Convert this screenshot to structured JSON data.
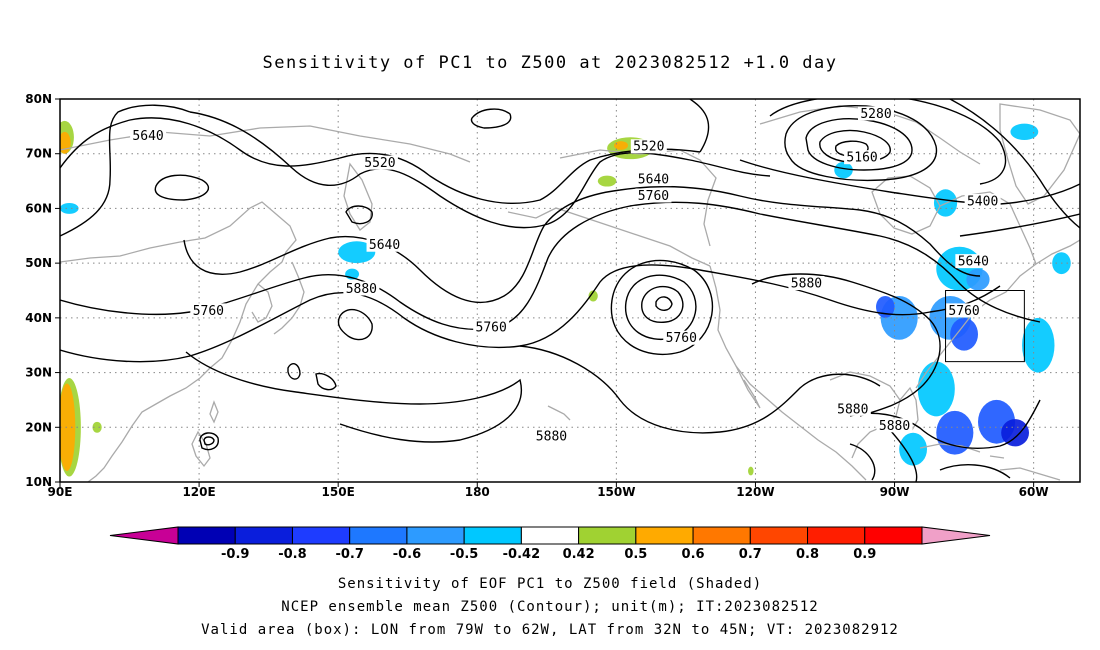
{
  "title": "Sensitivity of PC1 to Z500 at 2023082512 +1.0 day",
  "axes": {
    "lat_labels": [
      "80N",
      "70N",
      "60N",
      "50N",
      "40N",
      "30N",
      "20N",
      "10N"
    ],
    "lon_labels": [
      "90E",
      "120E",
      "150E",
      "180",
      "150W",
      "120W",
      "90W",
      "60W"
    ],
    "lat_range": [
      10,
      80
    ],
    "lon_range": [
      90,
      310
    ],
    "grid": "dotted"
  },
  "contour_labels": [
    {
      "text": "5640",
      "lon": 109,
      "lat": 73
    },
    {
      "text": "5520",
      "lon": 159,
      "lat": 68
    },
    {
      "text": "5640",
      "lon": 160,
      "lat": 53
    },
    {
      "text": "5880",
      "lon": 155,
      "lat": 45
    },
    {
      "text": "5760",
      "lon": 122,
      "lat": 41
    },
    {
      "text": "5760",
      "lon": 183,
      "lat": 38
    },
    {
      "text": "5880",
      "lon": 196,
      "lat": 18
    },
    {
      "text": "5520",
      "lon": 217,
      "lat": 71
    },
    {
      "text": "5640",
      "lon": 218,
      "lat": 65
    },
    {
      "text": "5760",
      "lon": 218,
      "lat": 62
    },
    {
      "text": "5760",
      "lon": 224,
      "lat": 36
    },
    {
      "text": "5880",
      "lon": 251,
      "lat": 46
    },
    {
      "text": "5280",
      "lon": 266,
      "lat": 77
    },
    {
      "text": "5160",
      "lon": 263,
      "lat": 69
    },
    {
      "text": "5400",
      "lon": 289,
      "lat": 61
    },
    {
      "text": "5640",
      "lon": 287,
      "lat": 50
    },
    {
      "text": "5760",
      "lon": 285,
      "lat": 41
    },
    {
      "text": "5880",
      "lon": 261,
      "lat": 23
    },
    {
      "text": "5880",
      "lon": 270,
      "lat": 20
    }
  ],
  "valid_box": {
    "lon_min": 281,
    "lon_max": 298,
    "lat_min": 32,
    "lat_max": 45
  },
  "shaded_regions": [
    {
      "level": -0.6,
      "color": "#1e5aff",
      "lon": 292,
      "lat": 21,
      "rx": 4,
      "ry": 4
    },
    {
      "level": -0.8,
      "color": "#0a1edc",
      "lon": 296,
      "lat": 19,
      "rx": 3,
      "ry": 2.5
    },
    {
      "level": -0.5,
      "color": "#2d9bff",
      "lon": 282,
      "lat": 40,
      "rx": 4.5,
      "ry": 4
    },
    {
      "level": -0.6,
      "color": "#1e5aff",
      "lon": 285,
      "lat": 37,
      "rx": 3,
      "ry": 3
    },
    {
      "level": -0.42,
      "color": "#00c8ff",
      "lon": 284,
      "lat": 49,
      "rx": 5,
      "ry": 4
    },
    {
      "level": -0.5,
      "color": "#2d9bff",
      "lon": 288,
      "lat": 47,
      "rx": 2.5,
      "ry": 2
    },
    {
      "level": -0.5,
      "color": "#2d9bff",
      "lon": 271,
      "lat": 40,
      "rx": 4,
      "ry": 4
    },
    {
      "level": -0.6,
      "color": "#1e5aff",
      "lon": 268,
      "lat": 42,
      "rx": 2,
      "ry": 2
    },
    {
      "level": -0.42,
      "color": "#00c8ff",
      "lon": 279,
      "lat": 27,
      "rx": 4,
      "ry": 5
    },
    {
      "level": -0.6,
      "color": "#1e5aff",
      "lon": 283,
      "lat": 19,
      "rx": 4,
      "ry": 4
    },
    {
      "level": -0.42,
      "color": "#00c8ff",
      "lon": 274,
      "lat": 16,
      "rx": 3,
      "ry": 3
    },
    {
      "level": -0.42,
      "color": "#00c8ff",
      "lon": 301,
      "lat": 35,
      "rx": 3.5,
      "ry": 5
    },
    {
      "level": -0.42,
      "color": "#00c8ff",
      "lon": 281,
      "lat": 61,
      "rx": 2.5,
      "ry": 2.5
    },
    {
      "level": -0.42,
      "color": "#00c8ff",
      "lon": 306,
      "lat": 50,
      "rx": 2,
      "ry": 2
    },
    {
      "level": -0.42,
      "color": "#00c8ff",
      "lon": 298,
      "lat": 74,
      "rx": 3,
      "ry": 1.5
    },
    {
      "level": -0.42,
      "color": "#00c8ff",
      "lon": 259,
      "lat": 67,
      "rx": 2,
      "ry": 1.5
    },
    {
      "level": -0.42,
      "color": "#00c8ff",
      "lon": 154,
      "lat": 52,
      "rx": 4,
      "ry": 2
    },
    {
      "level": -0.42,
      "color": "#00c8ff",
      "lon": 153,
      "lat": 48,
      "rx": 1.5,
      "ry": 1
    },
    {
      "level": -0.42,
      "color": "#00c8ff",
      "lon": 92,
      "lat": 60,
      "rx": 2,
      "ry": 1
    },
    {
      "level": 0.5,
      "color": "#a0d232",
      "lon": 213,
      "lat": 71,
      "rx": 5,
      "ry": 2
    },
    {
      "level": 0.6,
      "color": "#ffaa00",
      "lon": 211,
      "lat": 71.5,
      "rx": 1.5,
      "ry": 0.8
    },
    {
      "level": 0.5,
      "color": "#a0d232",
      "lon": 208,
      "lat": 65,
      "rx": 2,
      "ry": 1
    },
    {
      "level": 0.5,
      "color": "#a0d232",
      "lon": 91,
      "lat": 73,
      "rx": 2,
      "ry": 3
    },
    {
      "level": 0.6,
      "color": "#ffaa00",
      "lon": 91,
      "lat": 72,
      "rx": 1.3,
      "ry": 2
    },
    {
      "level": 0.5,
      "color": "#a0d232",
      "lon": 92,
      "lat": 20,
      "rx": 2.5,
      "ry": 9
    },
    {
      "level": 0.6,
      "color": "#ffaa00",
      "lon": 91.5,
      "lat": 20,
      "rx": 1.8,
      "ry": 8
    },
    {
      "level": 0.5,
      "color": "#a0d232",
      "lon": 98,
      "lat": 20,
      "rx": 1,
      "ry": 1
    },
    {
      "level": 0.5,
      "color": "#a0d232",
      "lon": 205,
      "lat": 44,
      "rx": 1,
      "ry": 1
    },
    {
      "level": 0.5,
      "color": "#a0d232",
      "lon": 239,
      "lat": 12,
      "rx": 0.6,
      "ry": 0.8
    }
  ],
  "colorbar": {
    "labels": [
      "-0.9",
      "-0.8",
      "-0.7",
      "-0.6",
      "-0.5",
      "-0.42",
      "0.42",
      "0.5",
      "0.6",
      "0.7",
      "0.8",
      "0.9"
    ],
    "colors": [
      "#c80096",
      "#0000b4",
      "#0a1edc",
      "#1e3cff",
      "#1e78ff",
      "#2d9bff",
      "#00c8ff",
      "#ffffff",
      "#a0d232",
      "#ffaa00",
      "#ff7800",
      "#ff4600",
      "#ff1e00",
      "#ff0000",
      "#f0a0c8"
    ]
  },
  "caption": [
    "Sensitivity of EOF PC1 to Z500 field (Shaded)",
    "NCEP ensemble mean Z500 (Contour); unit(m); IT:2023082512",
    "Valid area (box): LON from 79W to 62W, LAT from 32N to 45N; VT: 2023082912"
  ]
}
